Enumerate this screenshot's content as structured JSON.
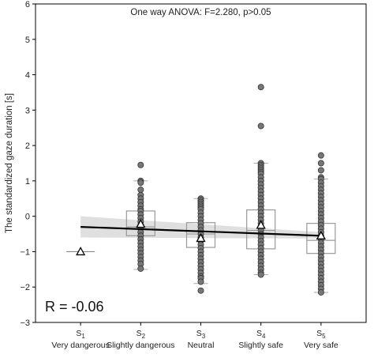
{
  "chart_data": {
    "type": "box",
    "title": "One way ANOVA:  F=2.280, p>0.05",
    "ylabel": "The standardized gaze duration [s]",
    "xlabel": "",
    "ylim": [
      -3,
      6
    ],
    "yticks": [
      -3,
      -2,
      -1,
      0,
      1,
      2,
      3,
      4,
      5,
      6
    ],
    "grid": false,
    "annotation": "R = -0.06",
    "categories": [
      {
        "main": "S",
        "sub": "1",
        "name": "Very dangerous"
      },
      {
        "main": "S",
        "sub": "2",
        "name": "Slightly dangerous"
      },
      {
        "main": "S",
        "sub": "3",
        "name": "Neutral"
      },
      {
        "main": "S",
        "sub": "4",
        "name": "Slightly safe"
      },
      {
        "main": "S",
        "sub": "5",
        "name": "Very safe"
      }
    ],
    "boxes": [
      {
        "q1": -1.0,
        "median": -1.0,
        "q3": -1.0,
        "whisker_low": -1.0,
        "whisker_high": -1.0,
        "mean": -1.0
      },
      {
        "q1": -0.55,
        "median": -0.3,
        "q3": 0.15,
        "whisker_low": -1.5,
        "whisker_high": 1.0,
        "mean": -0.22
      },
      {
        "q1": -0.88,
        "median": -0.5,
        "q3": -0.18,
        "whisker_low": -1.9,
        "whisker_high": 0.5,
        "mean": -0.62
      },
      {
        "q1": -0.92,
        "median": -0.4,
        "q3": 0.18,
        "whisker_low": -1.65,
        "whisker_high": 1.5,
        "mean": -0.25
      },
      {
        "q1": -1.05,
        "median": -0.68,
        "q3": -0.2,
        "whisker_low": -2.15,
        "whisker_high": 1.05,
        "mean": -0.55
      }
    ],
    "points": [
      {
        "category": 1,
        "y": [
          -1.0
        ]
      },
      {
        "category": 2,
        "y": [
          1.45,
          1.0,
          0.95,
          0.75,
          0.6,
          0.5,
          0.4,
          0.3,
          0.2,
          0.15,
          0.05,
          -0.05,
          -0.15,
          -0.25,
          -0.35,
          -0.45,
          -0.55,
          -0.65,
          -0.75,
          -0.85,
          -0.95,
          -1.05,
          -1.15,
          -1.25,
          -1.35,
          -1.48
        ]
      },
      {
        "category": 3,
        "y": [
          0.5,
          0.45,
          0.4,
          0.35,
          0.3,
          0.25,
          0.2,
          0.1,
          0.0,
          -0.1,
          -0.2,
          -0.3,
          -0.4,
          -0.5,
          -0.6,
          -0.7,
          -0.8,
          -0.9,
          -1.0,
          -1.1,
          -1.2,
          -1.3,
          -1.4,
          -1.5,
          -1.6,
          -1.7,
          -1.75,
          -1.85,
          -2.1
        ]
      },
      {
        "category": 4,
        "y": [
          3.65,
          2.55,
          1.5,
          1.45,
          1.4,
          1.35,
          1.3,
          1.25,
          1.2,
          1.1,
          1.0,
          0.9,
          0.8,
          0.7,
          0.6,
          0.5,
          0.4,
          0.3,
          0.2,
          0.1,
          0.0,
          -0.1,
          -0.2,
          -0.3,
          -0.4,
          -0.5,
          -0.6,
          -0.7,
          -0.8,
          -0.9,
          -1.0,
          -1.1,
          -1.2,
          -1.3,
          -1.4,
          -1.5,
          -1.6,
          -1.65
        ]
      },
      {
        "category": 5,
        "y": [
          1.72,
          1.5,
          1.3,
          1.1,
          1.05,
          0.95,
          0.85,
          0.75,
          0.65,
          0.55,
          0.45,
          0.35,
          0.25,
          0.15,
          0.05,
          -0.05,
          -0.15,
          -0.25,
          -0.35,
          -0.45,
          -0.55,
          -0.65,
          -0.75,
          -0.85,
          -0.95,
          -1.05,
          -1.15,
          -1.25,
          -1.35,
          -1.45,
          -1.55,
          -1.65,
          -1.75,
          -1.85,
          -1.95,
          -2.05,
          -2.15
        ]
      }
    ],
    "regression": {
      "x": [
        1,
        5
      ],
      "y": [
        -0.3,
        -0.55
      ],
      "ci_low": [
        -0.6,
        -0.63
      ],
      "ci_high": [
        0.0,
        -0.45
      ]
    }
  }
}
